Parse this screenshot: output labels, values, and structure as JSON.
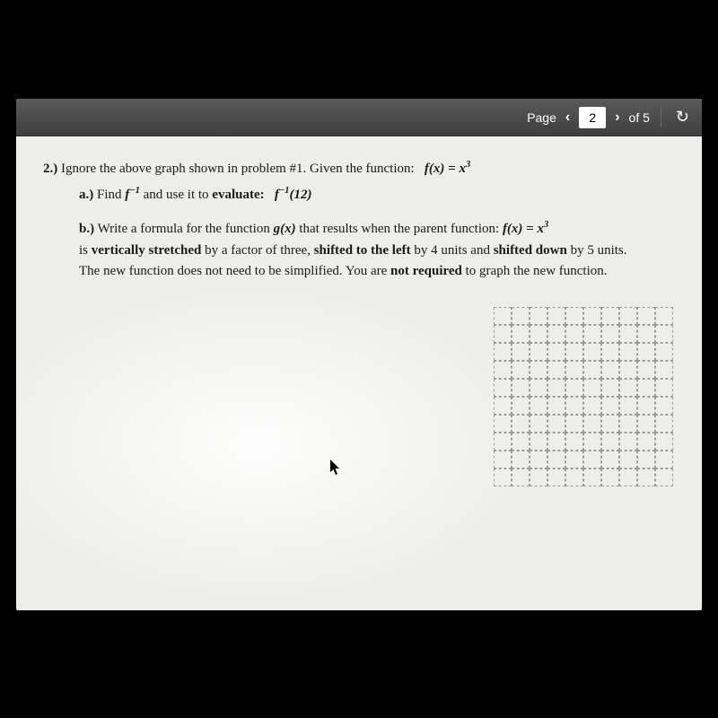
{
  "toolbar": {
    "page_label": "Page",
    "prev_arrow": "‹",
    "page_num": "2",
    "next_arrow": "›",
    "of_label": "of 5",
    "reload": "↻"
  },
  "question": {
    "number": "2.)",
    "stem_prefix": "Ignore the above graph shown in problem #1. Given the function:",
    "fx": "f(x) = x",
    "fx_exp": "3",
    "part_a_label": "a.)",
    "part_a_text1": "Find ",
    "part_a_finv": "f",
    "part_a_finv_exp": "−1",
    "part_a_text2": " and use it to ",
    "part_a_eval": "evaluate:",
    "part_a_expr": "f",
    "part_a_expr_exp": "−1",
    "part_a_expr_arg": "(12)",
    "part_b_label": "b.)",
    "part_b_text1": "Write a formula for the function ",
    "part_b_gx": "g(x)",
    "part_b_text2": " that results when the parent function:  ",
    "part_b_fx": "f(x) = x",
    "part_b_fx_exp": "3",
    "part_b_line2a": "is ",
    "part_b_vs": "vertically stretched",
    "part_b_line2b": " by a factor of three, ",
    "part_b_sl": "shifted to the left",
    "part_b_line2c": " by 4 units and ",
    "part_b_sd": "shifted down",
    "part_b_line2d": " by 5 units.",
    "part_b_line3a": "The new function does not need to be simplified. You are ",
    "part_b_nr": "not required",
    "part_b_line3b": " to graph the new function."
  },
  "grid": {
    "rows": 10,
    "cols": 10
  }
}
